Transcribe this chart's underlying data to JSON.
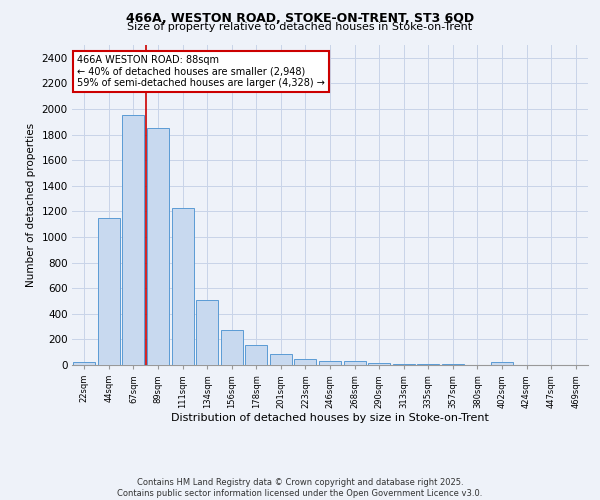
{
  "title1": "466A, WESTON ROAD, STOKE-ON-TRENT, ST3 6QD",
  "title2": "Size of property relative to detached houses in Stoke-on-Trent",
  "xlabel": "Distribution of detached houses by size in Stoke-on-Trent",
  "ylabel": "Number of detached properties",
  "categories": [
    "22sqm",
    "44sqm",
    "67sqm",
    "89sqm",
    "111sqm",
    "134sqm",
    "156sqm",
    "178sqm",
    "201sqm",
    "223sqm",
    "246sqm",
    "268sqm",
    "290sqm",
    "313sqm",
    "335sqm",
    "357sqm",
    "380sqm",
    "402sqm",
    "424sqm",
    "447sqm",
    "469sqm"
  ],
  "values": [
    20,
    1150,
    1950,
    1850,
    1230,
    510,
    270,
    155,
    85,
    45,
    35,
    30,
    15,
    10,
    5,
    5,
    3,
    20,
    3,
    2,
    1
  ],
  "bar_color": "#c8d9ef",
  "bar_edge_color": "#5b9bd5",
  "red_line_index": 3,
  "annotation_text": "466A WESTON ROAD: 88sqm\n← 40% of detached houses are smaller (2,948)\n59% of semi-detached houses are larger (4,328) →",
  "annotation_box_color": "#ffffff",
  "annotation_box_edge_color": "#cc0000",
  "grid_color": "#c8d4e8",
  "background_color": "#eef2f9",
  "footer_line1": "Contains HM Land Registry data © Crown copyright and database right 2025.",
  "footer_line2": "Contains public sector information licensed under the Open Government Licence v3.0.",
  "ylim": [
    0,
    2500
  ],
  "yticks": [
    0,
    200,
    400,
    600,
    800,
    1000,
    1200,
    1400,
    1600,
    1800,
    2000,
    2200,
    2400
  ]
}
